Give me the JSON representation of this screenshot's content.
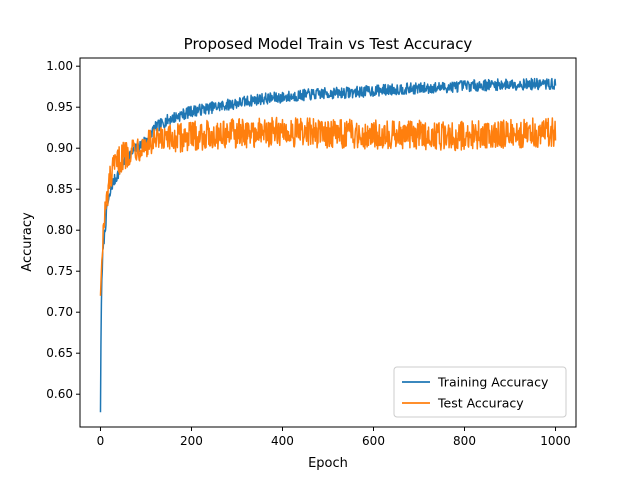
{
  "chart_data": {
    "type": "line",
    "title": "Proposed Model Train vs Test Accuracy",
    "xlabel": "Epoch",
    "ylabel": "Accuracy",
    "xlim": [
      -45,
      1045
    ],
    "ylim": [
      0.56,
      1.01
    ],
    "xticks": [
      0,
      200,
      400,
      600,
      800,
      1000
    ],
    "yticks": [
      0.6,
      0.65,
      0.7,
      0.75,
      0.8,
      0.85,
      0.9,
      0.95,
      1.0
    ],
    "grid": false,
    "legend": {
      "location": "lower-right"
    },
    "series": [
      {
        "name": "Training Accuracy",
        "color": "#1f77b4",
        "points": [
          [
            0,
            0.578
          ],
          [
            1,
            0.66
          ],
          [
            2,
            0.71
          ],
          [
            3,
            0.74
          ],
          [
            5,
            0.77
          ],
          [
            8,
            0.79
          ],
          [
            10,
            0.8
          ],
          [
            15,
            0.83
          ],
          [
            20,
            0.84
          ],
          [
            25,
            0.855
          ],
          [
            30,
            0.86
          ],
          [
            40,
            0.87
          ],
          [
            50,
            0.88
          ],
          [
            60,
            0.89
          ],
          [
            70,
            0.895
          ],
          [
            80,
            0.9
          ],
          [
            100,
            0.91
          ],
          [
            120,
            0.925
          ],
          [
            150,
            0.935
          ],
          [
            200,
            0.945
          ],
          [
            250,
            0.95
          ],
          [
            300,
            0.955
          ],
          [
            350,
            0.96
          ],
          [
            400,
            0.962
          ],
          [
            450,
            0.965
          ],
          [
            500,
            0.967
          ],
          [
            550,
            0.968
          ],
          [
            600,
            0.97
          ],
          [
            650,
            0.972
          ],
          [
            700,
            0.973
          ],
          [
            750,
            0.974
          ],
          [
            800,
            0.976
          ],
          [
            850,
            0.977
          ],
          [
            900,
            0.978
          ],
          [
            950,
            0.978
          ],
          [
            1000,
            0.978
          ]
        ],
        "noise": 0.007
      },
      {
        "name": "Test Accuracy",
        "color": "#ff7f0e",
        "points": [
          [
            0,
            0.72
          ],
          [
            2,
            0.75
          ],
          [
            5,
            0.79
          ],
          [
            10,
            0.82
          ],
          [
            15,
            0.84
          ],
          [
            20,
            0.86
          ],
          [
            30,
            0.875
          ],
          [
            40,
            0.885
          ],
          [
            50,
            0.89
          ],
          [
            70,
            0.9
          ],
          [
            100,
            0.905
          ],
          [
            150,
            0.91
          ],
          [
            200,
            0.915
          ],
          [
            300,
            0.918
          ],
          [
            400,
            0.92
          ],
          [
            500,
            0.918
          ],
          [
            600,
            0.917
          ],
          [
            700,
            0.916
          ],
          [
            800,
            0.915
          ],
          [
            900,
            0.918
          ],
          [
            1000,
            0.92
          ]
        ],
        "noise": 0.018
      }
    ]
  }
}
